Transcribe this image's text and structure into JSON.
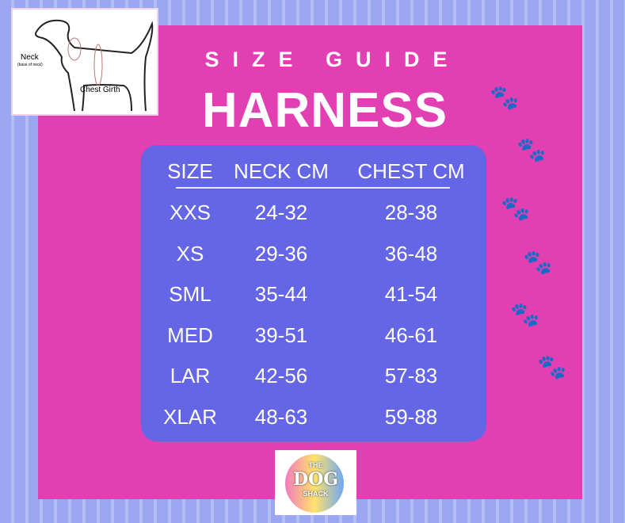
{
  "diagram": {
    "neck_label": "Neck",
    "neck_sub": "(base of neck)",
    "chest_label": "Chest Girth"
  },
  "title": "SIZE GUIDE",
  "subtitle": "HARNESS",
  "table": {
    "headers": [
      "SIZE",
      "NECK CM",
      "CHEST CM"
    ],
    "rows": [
      [
        "XXS",
        "24-32",
        "28-38"
      ],
      [
        "XS",
        "29-36",
        "36-48"
      ],
      [
        "SML",
        "35-44",
        "41-54"
      ],
      [
        "MED",
        "39-51",
        "46-61"
      ],
      [
        "LAR",
        "42-56",
        "57-83"
      ],
      [
        "XLAR",
        "48-63",
        "59-88"
      ]
    ]
  },
  "logo": {
    "line1": "THE",
    "line2": "DOG",
    "line3": "SHACK"
  },
  "colors": {
    "panel": "#e23fb3",
    "table": "#6466e6",
    "background": "#9aa6f2"
  }
}
